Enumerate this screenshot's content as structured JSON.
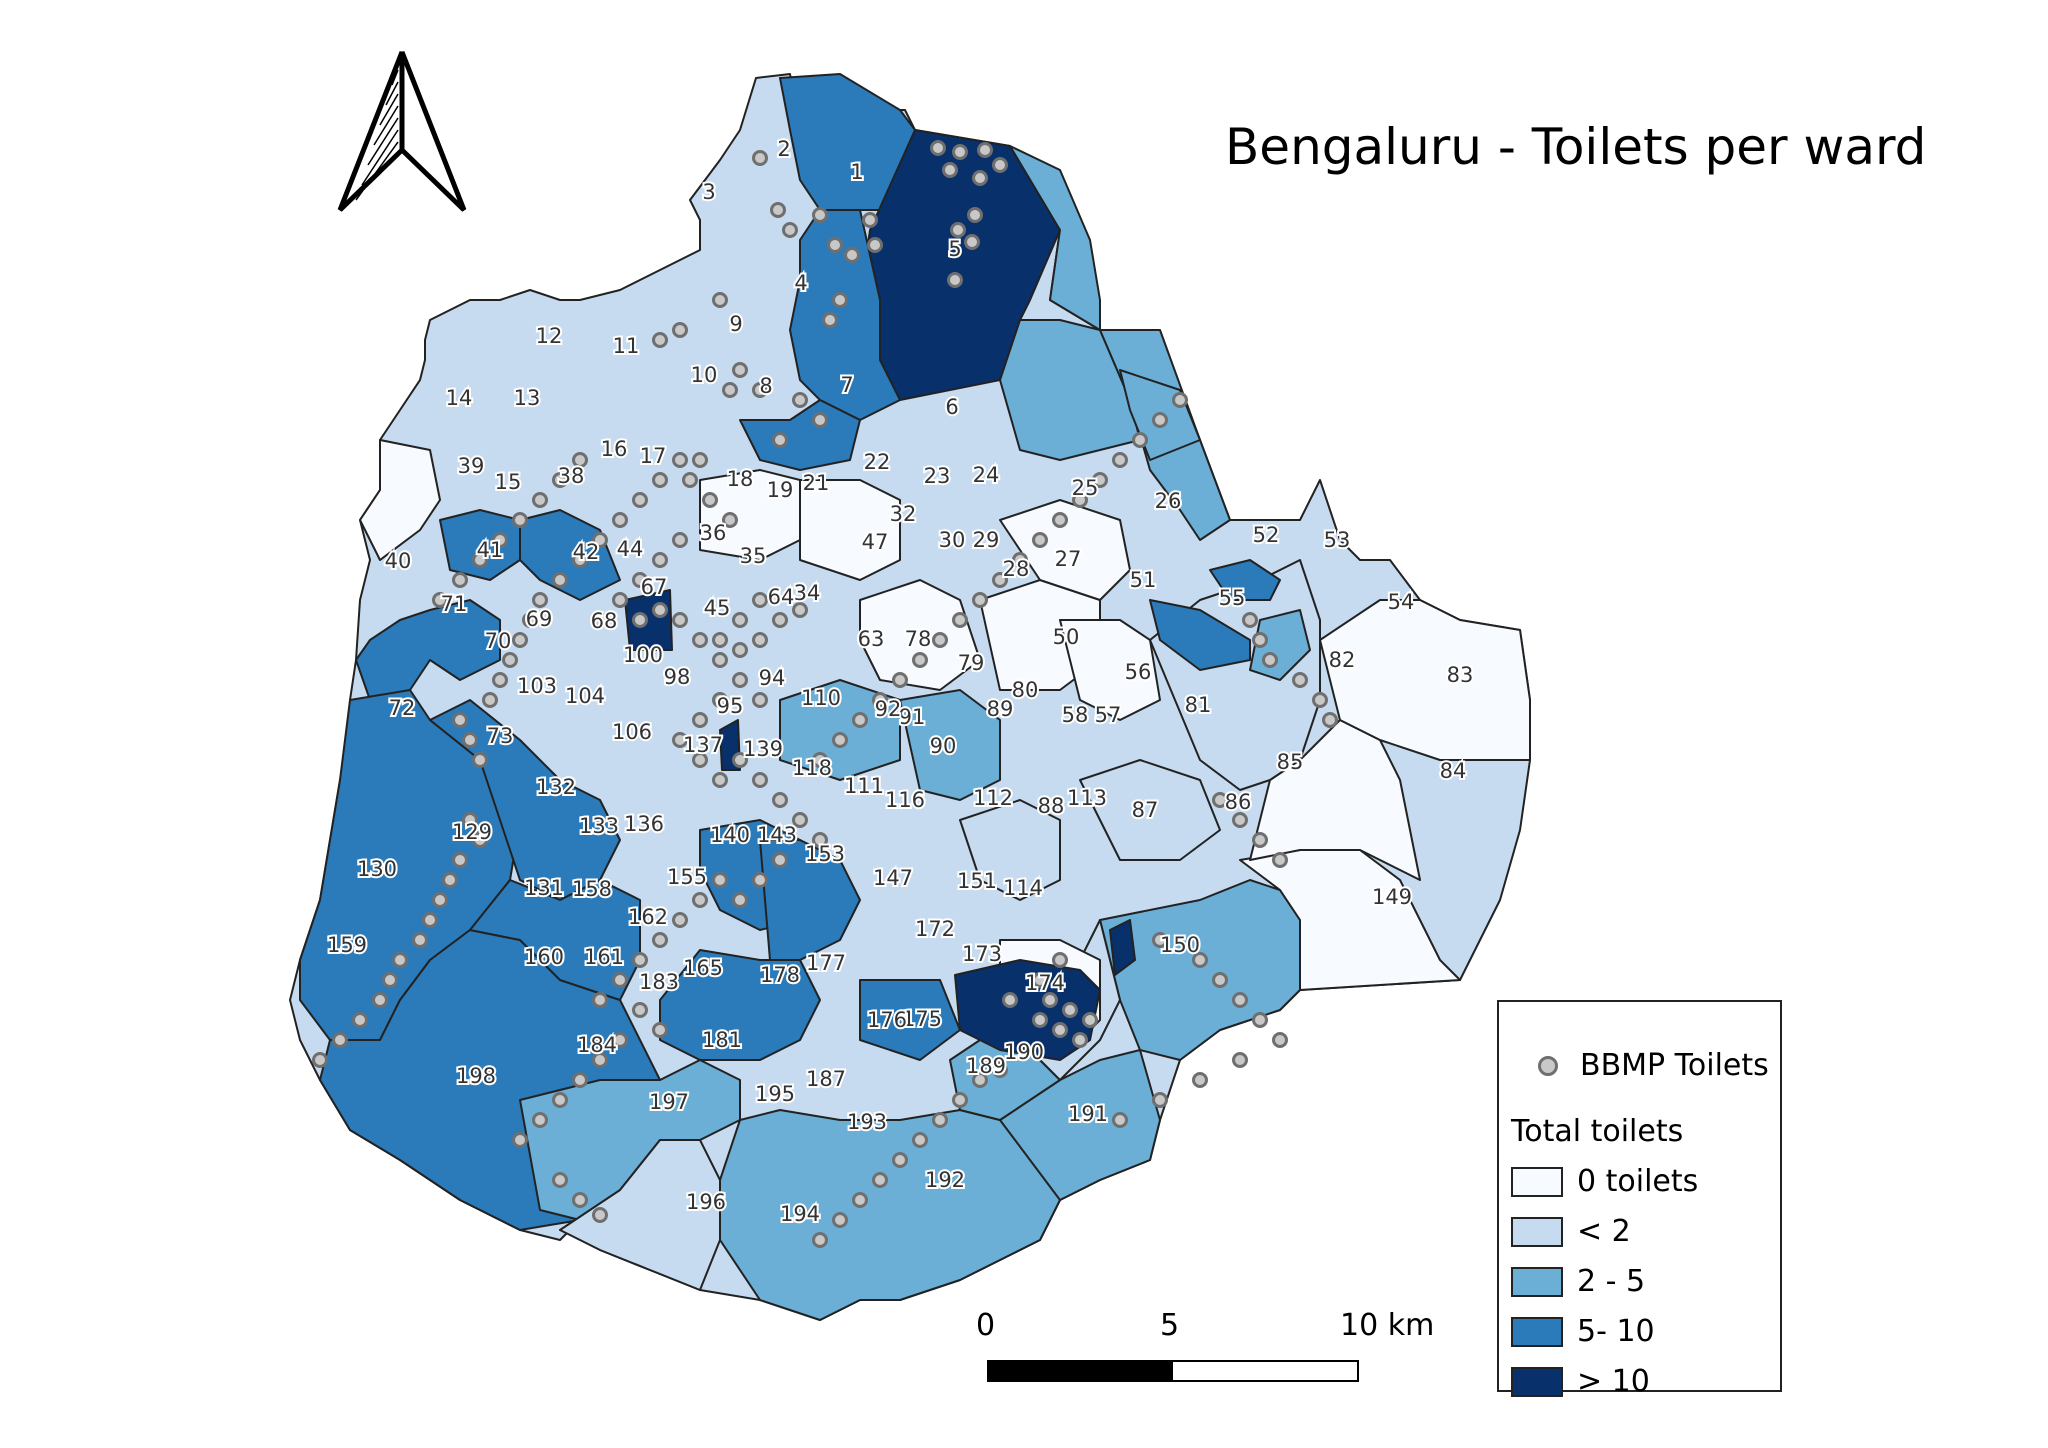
{
  "map": {
    "title": "Bengaluru - Toilets per ward",
    "colors": {
      "class_0": "#f7fbff",
      "class_lt2": "#c6dbef",
      "class_2_5": "#6baed6",
      "class_5_10": "#2b7bba",
      "class_gt10": "#08306b",
      "border": "#222222",
      "toilet_fill": "#c8c8c8",
      "toilet_stroke": "#6f6f6f"
    },
    "north_arrow_icon": "north-arrow-icon"
  },
  "legend": {
    "points_label": "BBMP Toilets",
    "title": "Total toilets",
    "classes": [
      {
        "label": "0 toilets",
        "color": "#f7fbff"
      },
      {
        "label": "< 2",
        "color": "#c6dbef"
      },
      {
        "label": "2 - 5",
        "color": "#6baed6"
      },
      {
        "label": "5- 10",
        "color": "#2b7bba"
      },
      {
        "label": "> 10",
        "color": "#08306b"
      }
    ]
  },
  "scale": {
    "tick_0": "0",
    "tick_5": "5",
    "tick_10": "10 km",
    "segment_colors": [
      "#000000",
      "#ffffff"
    ]
  },
  "ward_labels": [
    "1",
    "2",
    "3",
    "4",
    "5",
    "6",
    "7",
    "8",
    "9",
    "10",
    "11",
    "12",
    "13",
    "14",
    "15",
    "16",
    "17",
    "18",
    "19",
    "21",
    "22",
    "23",
    "24",
    "25",
    "26",
    "27",
    "28",
    "29",
    "30",
    "32",
    "34",
    "35",
    "36",
    "38",
    "39",
    "40",
    "41",
    "42",
    "44",
    "45",
    "47",
    "50",
    "51",
    "52",
    "53",
    "54",
    "55",
    "56",
    "57",
    "58",
    "63",
    "64",
    "67",
    "68",
    "69",
    "70",
    "71",
    "72",
    "73",
    "78",
    "79",
    "80",
    "81",
    "82",
    "83",
    "84",
    "85",
    "86",
    "87",
    "88",
    "89",
    "90",
    "91",
    "92",
    "94",
    "95",
    "98",
    "100",
    "103",
    "104",
    "106",
    "110",
    "111",
    "112",
    "113",
    "114",
    "116",
    "118",
    "129",
    "130",
    "131",
    "132",
    "133",
    "136",
    "137",
    "139",
    "140",
    "143",
    "147",
    "149",
    "150",
    "151",
    "153",
    "155",
    "158",
    "159",
    "160",
    "161",
    "162",
    "165",
    "172",
    "173",
    "174",
    "175",
    "176",
    "177",
    "178",
    "181",
    "183",
    "184",
    "187",
    "189",
    "190",
    "191",
    "192",
    "193",
    "194",
    "195",
    "196",
    "197",
    "198"
  ]
}
